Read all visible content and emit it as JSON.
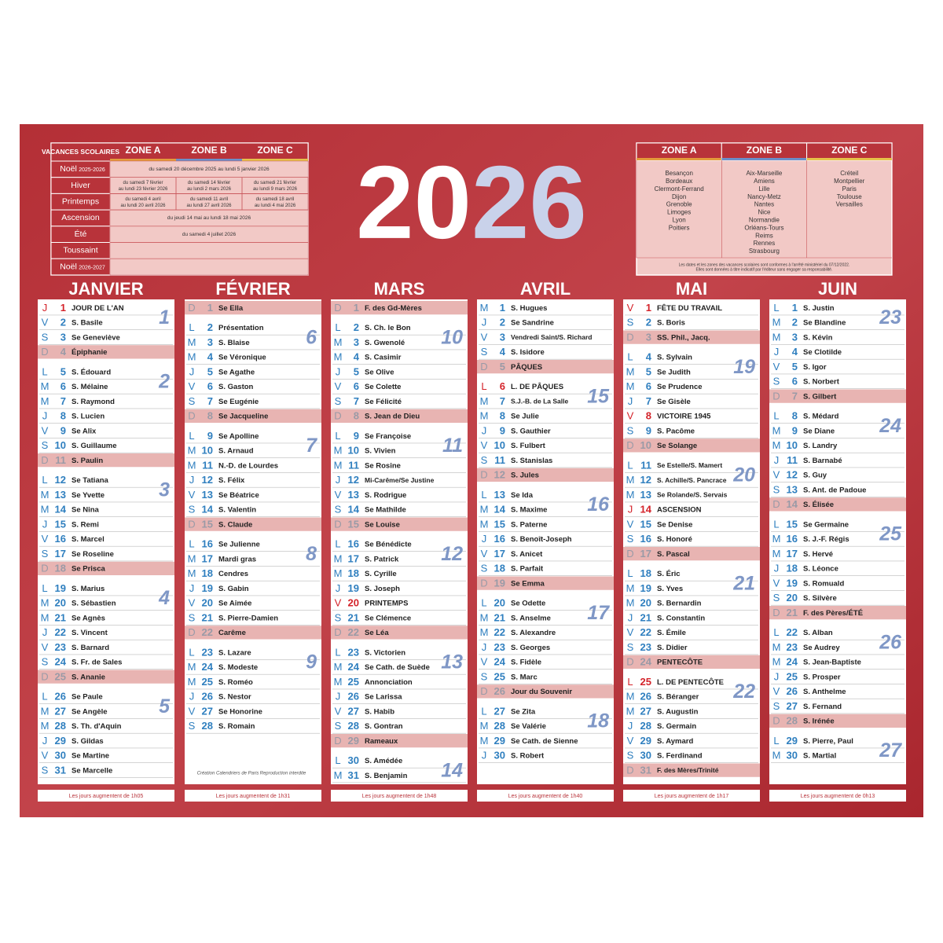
{
  "year": "2026",
  "holidays": {
    "title": "VACANCES SCOLAIRES",
    "zones": [
      "ZONE A",
      "ZONE B",
      "ZONE C"
    ],
    "rows": [
      {
        "label": "Noël",
        "sub": "2025-2026",
        "cells": [
          "du samedi 20 décembre 2025 au lundi 5 janvier 2026"
        ]
      },
      {
        "label": "Hiver",
        "cells": [
          "du samedi 7 février au lundi 23 février 2026",
          "du samedi 14 février au lundi 2 mars 2026",
          "du samedi 21 février au lundi 9 mars 2026"
        ]
      },
      {
        "label": "Printemps",
        "cells": [
          "du samedi 4 avril au lundi 20 avril 2026",
          "du samedi 11 avril au lundi 27 avril 2026",
          "du samedi 18 avril au lundi 4 mai 2026"
        ]
      },
      {
        "label": "Ascension",
        "cells": [
          "du jeudi 14 mai au lundi 18 mai 2026"
        ]
      },
      {
        "label": "Été",
        "cells": [
          "du samedi 4 juillet 2026"
        ]
      },
      {
        "label": "Toussaint",
        "cells": []
      },
      {
        "label": "Noël",
        "sub": "2026-2027",
        "cells": []
      }
    ]
  },
  "zones": {
    "columns": [
      {
        "name": "ZONE A",
        "cities": [
          "Besançon",
          "Bordeaux",
          "Clermont-Ferrand",
          "Dijon",
          "Grenoble",
          "Limoges",
          "Lyon",
          "Poitiers"
        ]
      },
      {
        "name": "ZONE B",
        "cities": [
          "Aix-Marseille",
          "Amiens",
          "Lille",
          "Nancy-Metz",
          "Nantes",
          "Nice",
          "Normandie",
          "Orléans-Tours",
          "Reims",
          "Rennes",
          "Strasbourg"
        ]
      },
      {
        "name": "ZONE C",
        "cities": [
          "Créteil",
          "Montpellier",
          "Paris",
          "Toulouse",
          "Versailles"
        ]
      }
    ],
    "note": [
      "Les dates et les zones des vacances scolaires sont conformes à l'arrêté ministériel du 07/12/2022.",
      "Elles sont données à titre indicatif par l'éditeur sans engager sa responsabilité."
    ]
  },
  "credits": [
    "Création Calendriers de Paris",
    "Reproduction interdite"
  ],
  "months": [
    {
      "name": "JANVIER",
      "footer": "Les jours augmentent de 1h05",
      "weeks": [
        "1",
        "2",
        "3",
        "4",
        "5"
      ],
      "days": [
        [
          "J",
          "1",
          "JOUR DE L'AN"
        ],
        [
          "V",
          "2",
          "S. Basile"
        ],
        [
          "S",
          "3",
          "Se Geneviève"
        ],
        [
          "D",
          "4",
          "Épiphanie"
        ],
        [
          "L",
          "5",
          "S. Édouard"
        ],
        [
          "M",
          "6",
          "S. Mélaine"
        ],
        [
          "M",
          "7",
          "S. Raymond"
        ],
        [
          "J",
          "8",
          "S. Lucien"
        ],
        [
          "V",
          "9",
          "Se Alix"
        ],
        [
          "S",
          "10",
          "S. Guillaume"
        ],
        [
          "D",
          "11",
          "S. Paulin"
        ],
        [
          "L",
          "12",
          "Se Tatiana"
        ],
        [
          "M",
          "13",
          "Se Yvette"
        ],
        [
          "M",
          "14",
          "Se Nina"
        ],
        [
          "J",
          "15",
          "S. Remi"
        ],
        [
          "V",
          "16",
          "S. Marcel"
        ],
        [
          "S",
          "17",
          "Se Roseline"
        ],
        [
          "D",
          "18",
          "Se Prisca"
        ],
        [
          "L",
          "19",
          "S. Marius"
        ],
        [
          "M",
          "20",
          "S. Sébastien"
        ],
        [
          "M",
          "21",
          "Se Agnès"
        ],
        [
          "J",
          "22",
          "S. Vincent"
        ],
        [
          "V",
          "23",
          "S. Barnard"
        ],
        [
          "S",
          "24",
          "S. Fr. de Sales"
        ],
        [
          "D",
          "25",
          "S. Ananie"
        ],
        [
          "L",
          "26",
          "Se Paule"
        ],
        [
          "M",
          "27",
          "Se Angèle"
        ],
        [
          "M",
          "28",
          "S. Th. d'Aquin"
        ],
        [
          "J",
          "29",
          "S. Gildas"
        ],
        [
          "V",
          "30",
          "Se Martine"
        ],
        [
          "S",
          "31",
          "Se Marcelle"
        ]
      ]
    },
    {
      "name": "FÉVRIER",
      "footer": "Les jours augmentent de 1h31",
      "weeks": [
        "6",
        "7",
        "8",
        "9"
      ],
      "days": [
        [
          "D",
          "1",
          "Se Ella"
        ],
        [
          "L",
          "2",
          "Présentation"
        ],
        [
          "M",
          "3",
          "S. Blaise"
        ],
        [
          "M",
          "4",
          "Se Véronique"
        ],
        [
          "J",
          "5",
          "Se Agathe"
        ],
        [
          "V",
          "6",
          "S. Gaston"
        ],
        [
          "S",
          "7",
          "Se Eugénie"
        ],
        [
          "D",
          "8",
          "Se Jacqueline"
        ],
        [
          "L",
          "9",
          "Se Apolline"
        ],
        [
          "M",
          "10",
          "S. Arnaud"
        ],
        [
          "M",
          "11",
          "N.-D. de Lourdes"
        ],
        [
          "J",
          "12",
          "S. Félix"
        ],
        [
          "V",
          "13",
          "Se Béatrice"
        ],
        [
          "S",
          "14",
          "S. Valentin"
        ],
        [
          "D",
          "15",
          "S. Claude"
        ],
        [
          "L",
          "16",
          "Se Julienne"
        ],
        [
          "M",
          "17",
          "Mardi gras"
        ],
        [
          "M",
          "18",
          "Cendres"
        ],
        [
          "J",
          "19",
          "S. Gabin"
        ],
        [
          "V",
          "20",
          "Se Aimée"
        ],
        [
          "S",
          "21",
          "S. Pierre-Damien"
        ],
        [
          "D",
          "22",
          "Carême"
        ],
        [
          "L",
          "23",
          "S. Lazare"
        ],
        [
          "M",
          "24",
          "S. Modeste"
        ],
        [
          "M",
          "25",
          "S. Roméo"
        ],
        [
          "J",
          "26",
          "S. Nestor"
        ],
        [
          "V",
          "27",
          "Se Honorine"
        ],
        [
          "S",
          "28",
          "S. Romain"
        ]
      ]
    },
    {
      "name": "MARS",
      "footer": "Les jours augmentent de 1h48",
      "weeks": [
        "10",
        "11",
        "12",
        "13",
        "14"
      ],
      "days": [
        [
          "D",
          "1",
          "F. des Gd-Mères"
        ],
        [
          "L",
          "2",
          "S. Ch. le Bon"
        ],
        [
          "M",
          "3",
          "S. Gwenolé"
        ],
        [
          "M",
          "4",
          "S. Casimir"
        ],
        [
          "J",
          "5",
          "Se Olive"
        ],
        [
          "V",
          "6",
          "Se Colette"
        ],
        [
          "S",
          "7",
          "Se Félicité"
        ],
        [
          "D",
          "8",
          "S. Jean de Dieu"
        ],
        [
          "L",
          "9",
          "Se Françoise"
        ],
        [
          "M",
          "10",
          "S. Vivien"
        ],
        [
          "M",
          "11",
          "Se Rosine"
        ],
        [
          "J",
          "12",
          "Mi-Carême/Se Justine"
        ],
        [
          "V",
          "13",
          "S. Rodrigue"
        ],
        [
          "S",
          "14",
          "Se Mathilde"
        ],
        [
          "D",
          "15",
          "Se Louise"
        ],
        [
          "L",
          "16",
          "Se Bénédicte"
        ],
        [
          "M",
          "17",
          "S. Patrick"
        ],
        [
          "M",
          "18",
          "S. Cyrille"
        ],
        [
          "J",
          "19",
          "S. Joseph"
        ],
        [
          "V",
          "20",
          "PRINTEMPS"
        ],
        [
          "S",
          "21",
          "Se Clémence"
        ],
        [
          "D",
          "22",
          "Se Léa"
        ],
        [
          "L",
          "23",
          "S. Victorien"
        ],
        [
          "M",
          "24",
          "Se Cath. de Suède"
        ],
        [
          "M",
          "25",
          "Annonciation"
        ],
        [
          "J",
          "26",
          "Se Larissa"
        ],
        [
          "V",
          "27",
          "S. Habib"
        ],
        [
          "S",
          "28",
          "S. Gontran"
        ],
        [
          "D",
          "29",
          "Rameaux"
        ],
        [
          "L",
          "30",
          "S. Amédée"
        ],
        [
          "M",
          "31",
          "S. Benjamin"
        ]
      ]
    },
    {
      "name": "AVRIL",
      "footer": "Les jours augmentent de 1h40",
      "weeks": [
        "15",
        "16",
        "17",
        "18"
      ],
      "days": [
        [
          "M",
          "1",
          "S. Hugues"
        ],
        [
          "J",
          "2",
          "Se Sandrine"
        ],
        [
          "V",
          "3",
          "Vendredi Saint/S. Richard"
        ],
        [
          "S",
          "4",
          "S. Isidore"
        ],
        [
          "D",
          "5",
          "PÂQUES"
        ],
        [
          "L",
          "6",
          "L. DE PÂQUES"
        ],
        [
          "M",
          "7",
          "S.J.-B. de La Salle"
        ],
        [
          "M",
          "8",
          "Se Julie"
        ],
        [
          "J",
          "9",
          "S. Gauthier"
        ],
        [
          "V",
          "10",
          "S. Fulbert"
        ],
        [
          "S",
          "11",
          "S. Stanislas"
        ],
        [
          "D",
          "12",
          "S. Jules"
        ],
        [
          "L",
          "13",
          "Se Ida"
        ],
        [
          "M",
          "14",
          "S. Maxime"
        ],
        [
          "M",
          "15",
          "S. Paterne"
        ],
        [
          "J",
          "16",
          "S. Benoît-Joseph"
        ],
        [
          "V",
          "17",
          "S. Anicet"
        ],
        [
          "S",
          "18",
          "S. Parfait"
        ],
        [
          "D",
          "19",
          "Se Emma"
        ],
        [
          "L",
          "20",
          "Se Odette"
        ],
        [
          "M",
          "21",
          "S. Anselme"
        ],
        [
          "M",
          "22",
          "S. Alexandre"
        ],
        [
          "J",
          "23",
          "S. Georges"
        ],
        [
          "V",
          "24",
          "S. Fidèle"
        ],
        [
          "S",
          "25",
          "S. Marc"
        ],
        [
          "D",
          "26",
          "Jour du Souvenir"
        ],
        [
          "L",
          "27",
          "Se Zita"
        ],
        [
          "M",
          "28",
          "Se Valérie"
        ],
        [
          "M",
          "29",
          "Se Cath. de Sienne"
        ],
        [
          "J",
          "30",
          "S. Robert"
        ]
      ]
    },
    {
      "name": "MAI",
      "footer": "Les jours augmentent de 1h17",
      "weeks": [
        "19",
        "20",
        "21",
        "22"
      ],
      "days": [
        [
          "V",
          "1",
          "FÊTE DU TRAVAIL"
        ],
        [
          "S",
          "2",
          "S. Boris"
        ],
        [
          "D",
          "3",
          "SS. Phil., Jacq."
        ],
        [
          "L",
          "4",
          "S. Sylvain"
        ],
        [
          "M",
          "5",
          "Se Judith"
        ],
        [
          "M",
          "6",
          "Se Prudence"
        ],
        [
          "J",
          "7",
          "Se Gisèle"
        ],
        [
          "V",
          "8",
          "VICTOIRE 1945"
        ],
        [
          "S",
          "9",
          "S. Pacôme"
        ],
        [
          "D",
          "10",
          "Se Solange"
        ],
        [
          "L",
          "11",
          "Se Estelle/S. Mamert"
        ],
        [
          "M",
          "12",
          "S. Achille/S. Pancrace"
        ],
        [
          "M",
          "13",
          "Se Rolande/S. Servais"
        ],
        [
          "J",
          "14",
          "ASCENSION"
        ],
        [
          "V",
          "15",
          "Se Denise"
        ],
        [
          "S",
          "16",
          "S. Honoré"
        ],
        [
          "D",
          "17",
          "S. Pascal"
        ],
        [
          "L",
          "18",
          "S. Éric"
        ],
        [
          "M",
          "19",
          "S. Yves"
        ],
        [
          "M",
          "20",
          "S. Bernardin"
        ],
        [
          "J",
          "21",
          "S. Constantin"
        ],
        [
          "V",
          "22",
          "S. Émile"
        ],
        [
          "S",
          "23",
          "S. Didier"
        ],
        [
          "D",
          "24",
          "PENTECÔTE"
        ],
        [
          "L",
          "25",
          "L. DE PENTECÔTE"
        ],
        [
          "M",
          "26",
          "S. Béranger"
        ],
        [
          "M",
          "27",
          "S. Augustin"
        ],
        [
          "J",
          "28",
          "S. Germain"
        ],
        [
          "V",
          "29",
          "S. Aymard"
        ],
        [
          "S",
          "30",
          "S. Ferdinand"
        ],
        [
          "D",
          "31",
          "F. des Mères/Trinité"
        ]
      ]
    },
    {
      "name": "JUIN",
      "footer": "Les jours augmentent de 0h13",
      "weeks": [
        "23",
        "24",
        "25",
        "26",
        "27"
      ],
      "days": [
        [
          "L",
          "1",
          "S. Justin"
        ],
        [
          "M",
          "2",
          "Se Blandine"
        ],
        [
          "M",
          "3",
          "S. Kévin"
        ],
        [
          "J",
          "4",
          "Se Clotilde"
        ],
        [
          "V",
          "5",
          "S. Igor"
        ],
        [
          "S",
          "6",
          "S. Norbert"
        ],
        [
          "D",
          "7",
          "S. Gilbert"
        ],
        [
          "L",
          "8",
          "S. Médard"
        ],
        [
          "M",
          "9",
          "Se Diane"
        ],
        [
          "M",
          "10",
          "S. Landry"
        ],
        [
          "J",
          "11",
          "S. Barnabé"
        ],
        [
          "V",
          "12",
          "S. Guy"
        ],
        [
          "S",
          "13",
          "S. Ant. de Padoue"
        ],
        [
          "D",
          "14",
          "S. Élisée"
        ],
        [
          "L",
          "15",
          "Se Germaine"
        ],
        [
          "M",
          "16",
          "S. J.-F. Régis"
        ],
        [
          "M",
          "17",
          "S. Hervé"
        ],
        [
          "J",
          "18",
          "S. Léonce"
        ],
        [
          "V",
          "19",
          "S. Romuald"
        ],
        [
          "S",
          "20",
          "S. Silvère"
        ],
        [
          "D",
          "21",
          "F. des Pères/ÉTÉ"
        ],
        [
          "L",
          "22",
          "S. Alban"
        ],
        [
          "M",
          "23",
          "Se Audrey"
        ],
        [
          "M",
          "24",
          "S. Jean-Baptiste"
        ],
        [
          "J",
          "25",
          "S. Prosper"
        ],
        [
          "V",
          "26",
          "S. Anthelme"
        ],
        [
          "S",
          "27",
          "S. Fernand"
        ],
        [
          "D",
          "28",
          "S. Irénée"
        ],
        [
          "L",
          "29",
          "S. Pierre, Paul"
        ],
        [
          "M",
          "30",
          "S. Martial"
        ]
      ]
    }
  ]
}
